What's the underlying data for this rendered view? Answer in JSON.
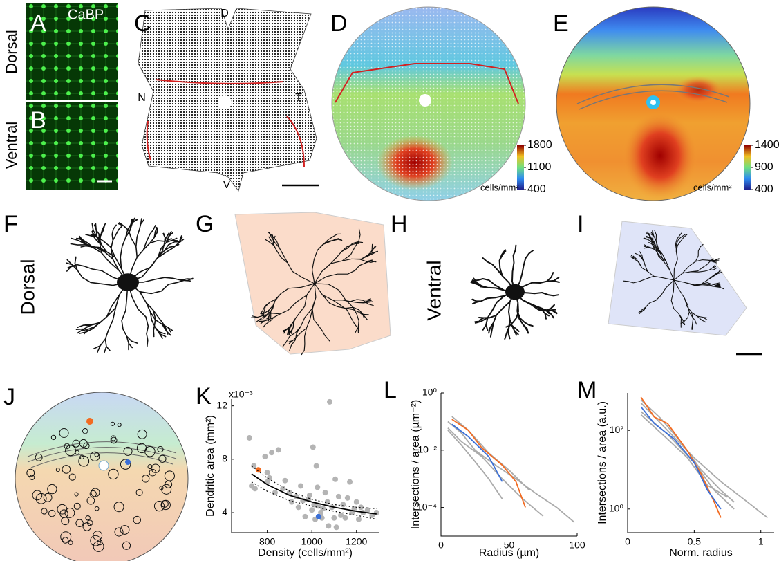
{
  "panels": {
    "A": {
      "label": "A",
      "stain": "CaBP",
      "region": "Dorsal"
    },
    "B": {
      "label": "B",
      "region": "Ventral"
    },
    "C": {
      "label": "C",
      "orientation": {
        "dorsal": "D",
        "nasal": "N",
        "temporal": "T",
        "ventral": "V"
      }
    },
    "D": {
      "label": "D",
      "colorbar": {
        "unit": "cells/mm²",
        "lim": [
          400,
          1800
        ],
        "ticks": [
          400,
          1100,
          1800
        ]
      }
    },
    "E": {
      "label": "E",
      "colorbar": {
        "unit": "cells/mm²",
        "lim": [
          400,
          1400
        ],
        "ticks": [
          400,
          900,
          1400
        ]
      }
    },
    "F": {
      "label": "F",
      "region": "Dorsal"
    },
    "G": {
      "label": "G"
    },
    "H": {
      "label": "H",
      "region": "Ventral"
    },
    "I": {
      "label": "I"
    },
    "J": {
      "label": "J"
    }
  },
  "chart_data": [
    {
      "type": "scatter",
      "panel_label": "K",
      "multiplier": "x10⁻³",
      "x_label": "Density (cells/mm²)",
      "y_label": "Dendritic area (mm²)",
      "xlim": [
        640,
        1300
      ],
      "ylim": [
        2.5,
        12.5
      ],
      "xticks": [
        800,
        1000,
        1200
      ],
      "yticks": [
        4,
        8,
        12
      ],
      "series": [
        {
          "color": "#b4b4b4",
          "x": [
            720,
            730,
            745,
            740,
            790,
            800,
            800,
            810,
            820,
            835,
            850,
            870,
            880,
            900,
            910,
            930,
            940,
            950,
            960,
            970,
            985,
            990,
            1000,
            1005,
            1010,
            1015,
            1020,
            1025,
            1030,
            1040,
            1045,
            1050,
            1060,
            1070,
            1075,
            1080,
            1090,
            1100,
            1105,
            1110,
            1120,
            1130,
            1140,
            1150,
            1160,
            1170,
            1180,
            1190,
            1200,
            1210,
            1220,
            1230,
            1250,
            1270,
            1290
          ],
          "values": [
            9.6,
            6.0,
            5.8,
            7.5,
            8.2,
            7.0,
            6.3,
            6.6,
            8.5,
            5.5,
            8.7,
            5.8,
            6.4,
            5.5,
            4.8,
            5.2,
            4.4,
            6.0,
            4.9,
            3.7,
            5.0,
            5.3,
            4.2,
            8.9,
            4.6,
            3.5,
            7.5,
            5.9,
            4.5,
            4.0,
            3.6,
            4.3,
            5.5,
            4.8,
            3.0,
            12.3,
            4.4,
            3.6,
            6.5,
            2.9,
            5.2,
            3.8,
            4.6,
            3.6,
            5.1,
            6.3,
            4.0,
            4.3,
            4.8,
            3.5,
            4.4,
            4.0,
            4.2,
            3.8,
            4.0
          ]
        },
        {
          "color": "#f26b21",
          "x": [
            760
          ],
          "values": [
            7.2
          ]
        },
        {
          "color": "#3a6fd8",
          "x": [
            1030
          ],
          "values": [
            3.7
          ]
        }
      ],
      "lines": [
        {
          "color": "#000000",
          "dash": false,
          "x": [
            730,
            800,
            900,
            1000,
            1100,
            1200,
            1290
          ],
          "values": [
            6.9,
            6.1,
            5.3,
            4.8,
            4.4,
            4.1,
            3.9
          ]
        },
        {
          "color": "#000000",
          "dash": true,
          "x": [
            730,
            800,
            900,
            1000,
            1100,
            1200,
            1290
          ],
          "values": [
            7.5,
            6.6,
            5.6,
            5.0,
            4.6,
            4.4,
            4.3
          ]
        },
        {
          "color": "#000000",
          "dash": true,
          "x": [
            730,
            800,
            900,
            1000,
            1100,
            1200,
            1290
          ],
          "values": [
            6.3,
            5.6,
            4.9,
            4.5,
            4.1,
            3.8,
            3.5
          ]
        }
      ]
    },
    {
      "type": "line",
      "panel_label": "L",
      "log_y": true,
      "x_label": "Radius (µm)",
      "y_label": "Intersections / area (µm⁻²)",
      "xlim": [
        0,
        100
      ],
      "ylim": [
        1e-05,
        1
      ],
      "xticks": [
        0,
        50,
        100
      ],
      "yticks": [
        {
          "value": 1,
          "label": "10⁰"
        },
        {
          "value": 0.01,
          "label": "10⁻²"
        },
        {
          "value": 0.0001,
          "label": "10⁻⁴"
        }
      ],
      "series": [
        {
          "color": "#aaaaaa",
          "x": [
            5,
            15,
            25,
            40,
            55,
            70,
            85,
            98
          ],
          "values": [
            0.1,
            0.04,
            0.01,
            0.003,
            0.001,
            0.0003,
            0.0001,
            3e-05
          ]
        },
        {
          "color": "#aaaaaa",
          "x": [
            5,
            15,
            30,
            45,
            60,
            75
          ],
          "values": [
            0.06,
            0.02,
            0.006,
            0.001,
            0.0002,
            5e-05
          ]
        },
        {
          "color": "#aaaaaa",
          "x": [
            8,
            20,
            35,
            50,
            65
          ],
          "values": [
            0.15,
            0.05,
            0.008,
            0.002,
            0.0004
          ]
        },
        {
          "color": "#aaaaaa",
          "x": [
            5,
            15,
            25,
            35,
            45
          ],
          "values": [
            0.05,
            0.015,
            0.004,
            0.001,
            0.0002
          ]
        },
        {
          "color": "#f26b21",
          "x": [
            8,
            20,
            30,
            45,
            55,
            62
          ],
          "values": [
            0.12,
            0.05,
            0.012,
            0.003,
            0.0008,
            0.0001
          ]
        },
        {
          "color": "#3a6fd8",
          "x": [
            8,
            20,
            35,
            45
          ],
          "values": [
            0.08,
            0.03,
            0.006,
            0.0008
          ]
        }
      ]
    },
    {
      "type": "line",
      "panel_label": "M",
      "log_y": true,
      "x_label": "Norm. radius",
      "y_label": "Intersections / area (a.u.)",
      "xlim": [
        0,
        1.1
      ],
      "ylim": [
        0.25,
        900
      ],
      "xticks": [
        0,
        0.5,
        1
      ],
      "yticks": [
        {
          "value": 100,
          "label": "10²"
        },
        {
          "value": 1,
          "label": "10⁰"
        }
      ],
      "series": [
        {
          "color": "#aaaaaa",
          "x": [
            0.1,
            0.3,
            0.5,
            0.7,
            0.9,
            1.05
          ],
          "values": [
            500,
            100,
            20,
            5,
            1.5,
            0.6
          ]
        },
        {
          "color": "#aaaaaa",
          "x": [
            0.1,
            0.3,
            0.5,
            0.65,
            0.8
          ],
          "values": [
            300,
            80,
            15,
            3,
            1
          ]
        },
        {
          "color": "#aaaaaa",
          "x": [
            0.1,
            0.25,
            0.4,
            0.55,
            0.7,
            0.8
          ],
          "values": [
            600,
            200,
            50,
            10,
            3,
            1.5
          ]
        },
        {
          "color": "#aaaaaa",
          "x": [
            0.1,
            0.3,
            0.45,
            0.6,
            0.75
          ],
          "values": [
            250,
            60,
            20,
            4,
            2
          ]
        },
        {
          "color": "#f26b21",
          "x": [
            0.1,
            0.2,
            0.3,
            0.45,
            0.55,
            0.65,
            0.7
          ],
          "values": [
            700,
            220,
            150,
            30,
            8,
            1.5,
            0.6
          ]
        },
        {
          "color": "#3a6fd8",
          "x": [
            0.1,
            0.2,
            0.35,
            0.5,
            0.6,
            0.7
          ],
          "values": [
            400,
            150,
            60,
            15,
            3,
            1
          ]
        }
      ]
    }
  ]
}
